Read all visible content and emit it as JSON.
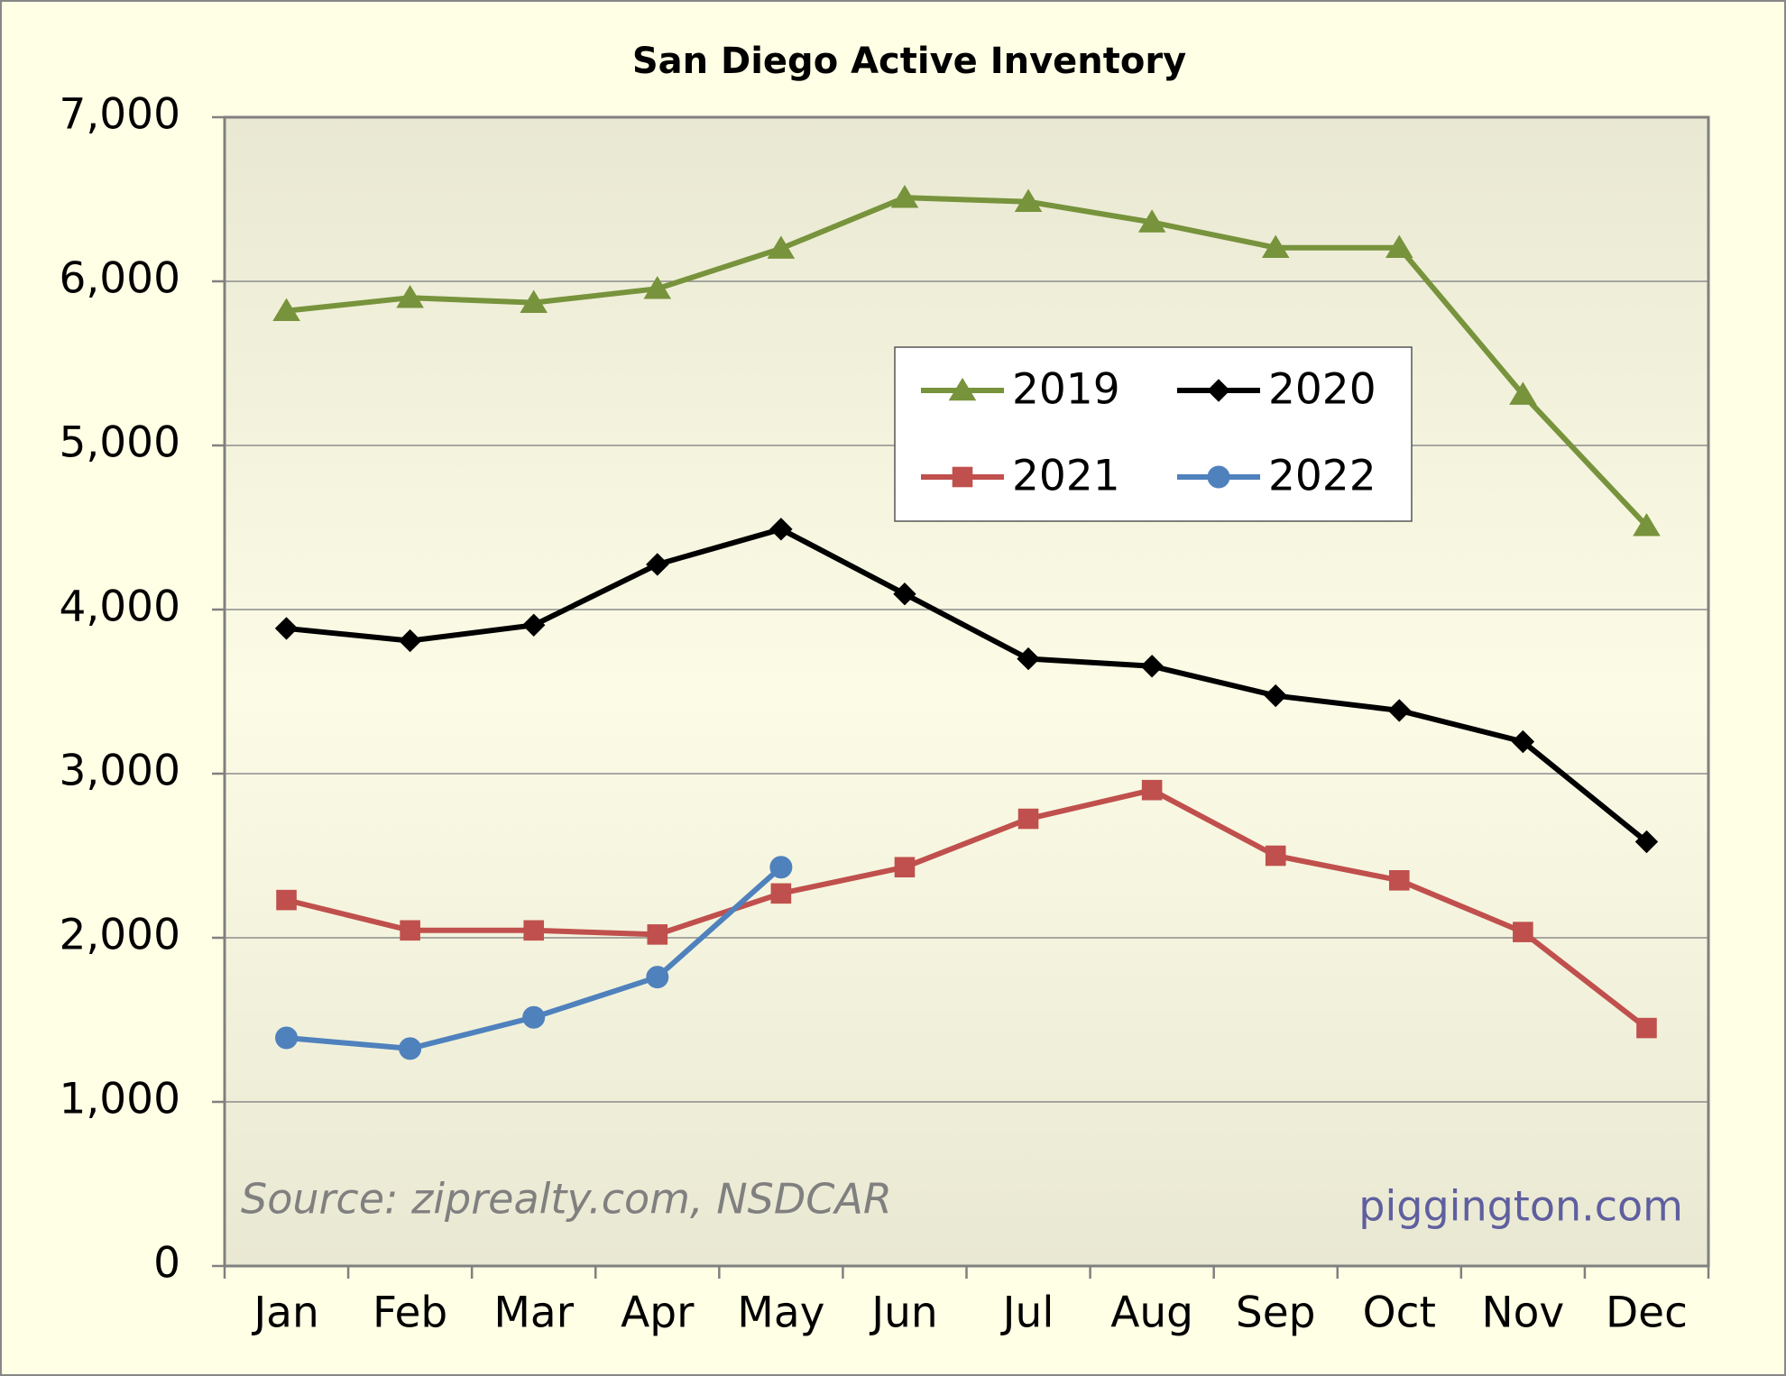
{
  "chart_data": {
    "type": "line",
    "title": "San Diego Active Inventory",
    "categories": [
      "Jan",
      "Feb",
      "Mar",
      "Apr",
      "May",
      "Jun",
      "Jul",
      "Aug",
      "Sep",
      "Oct",
      "Nov",
      "Dec"
    ],
    "series": [
      {
        "name": "2019",
        "color": "#77933c",
        "marker": "triangle",
        "values": [
          5820,
          5900,
          5870,
          5955,
          6200,
          6510,
          6485,
          6360,
          6205,
          6205,
          5310,
          4510
        ]
      },
      {
        "name": "2020",
        "color": "#000000",
        "marker": "diamond",
        "values": [
          3885,
          3810,
          3905,
          4275,
          4490,
          4095,
          3700,
          3655,
          3475,
          3385,
          3195,
          2585
        ]
      },
      {
        "name": "2021",
        "color": "#c0504d",
        "marker": "square",
        "values": [
          2230,
          2045,
          2045,
          2020,
          2270,
          2430,
          2725,
          2900,
          2500,
          2350,
          2035,
          1450
        ]
      },
      {
        "name": "2022",
        "color": "#4f81bd",
        "marker": "circle",
        "values": [
          1390,
          1325,
          1515,
          1760,
          2430,
          null,
          null,
          null,
          null,
          null,
          null,
          null
        ]
      }
    ],
    "ylim": [
      0,
      7000
    ],
    "yticks": [
      0,
      {
        "value": 1000,
        "label": "1,000"
      },
      {
        "value": 2000,
        "label": "2,000"
      },
      {
        "value": 3000,
        "label": "3,000"
      },
      {
        "value": 4000,
        "label": "4,000"
      },
      {
        "value": 5000,
        "label": "5,000"
      },
      {
        "value": 6000,
        "label": "6,000"
      },
      {
        "value": 7000,
        "label": "7,000"
      }
    ],
    "grid": true,
    "annotations": [
      "Source: ziprealty.com, NSDCAR",
      "piggington.com"
    ]
  }
}
